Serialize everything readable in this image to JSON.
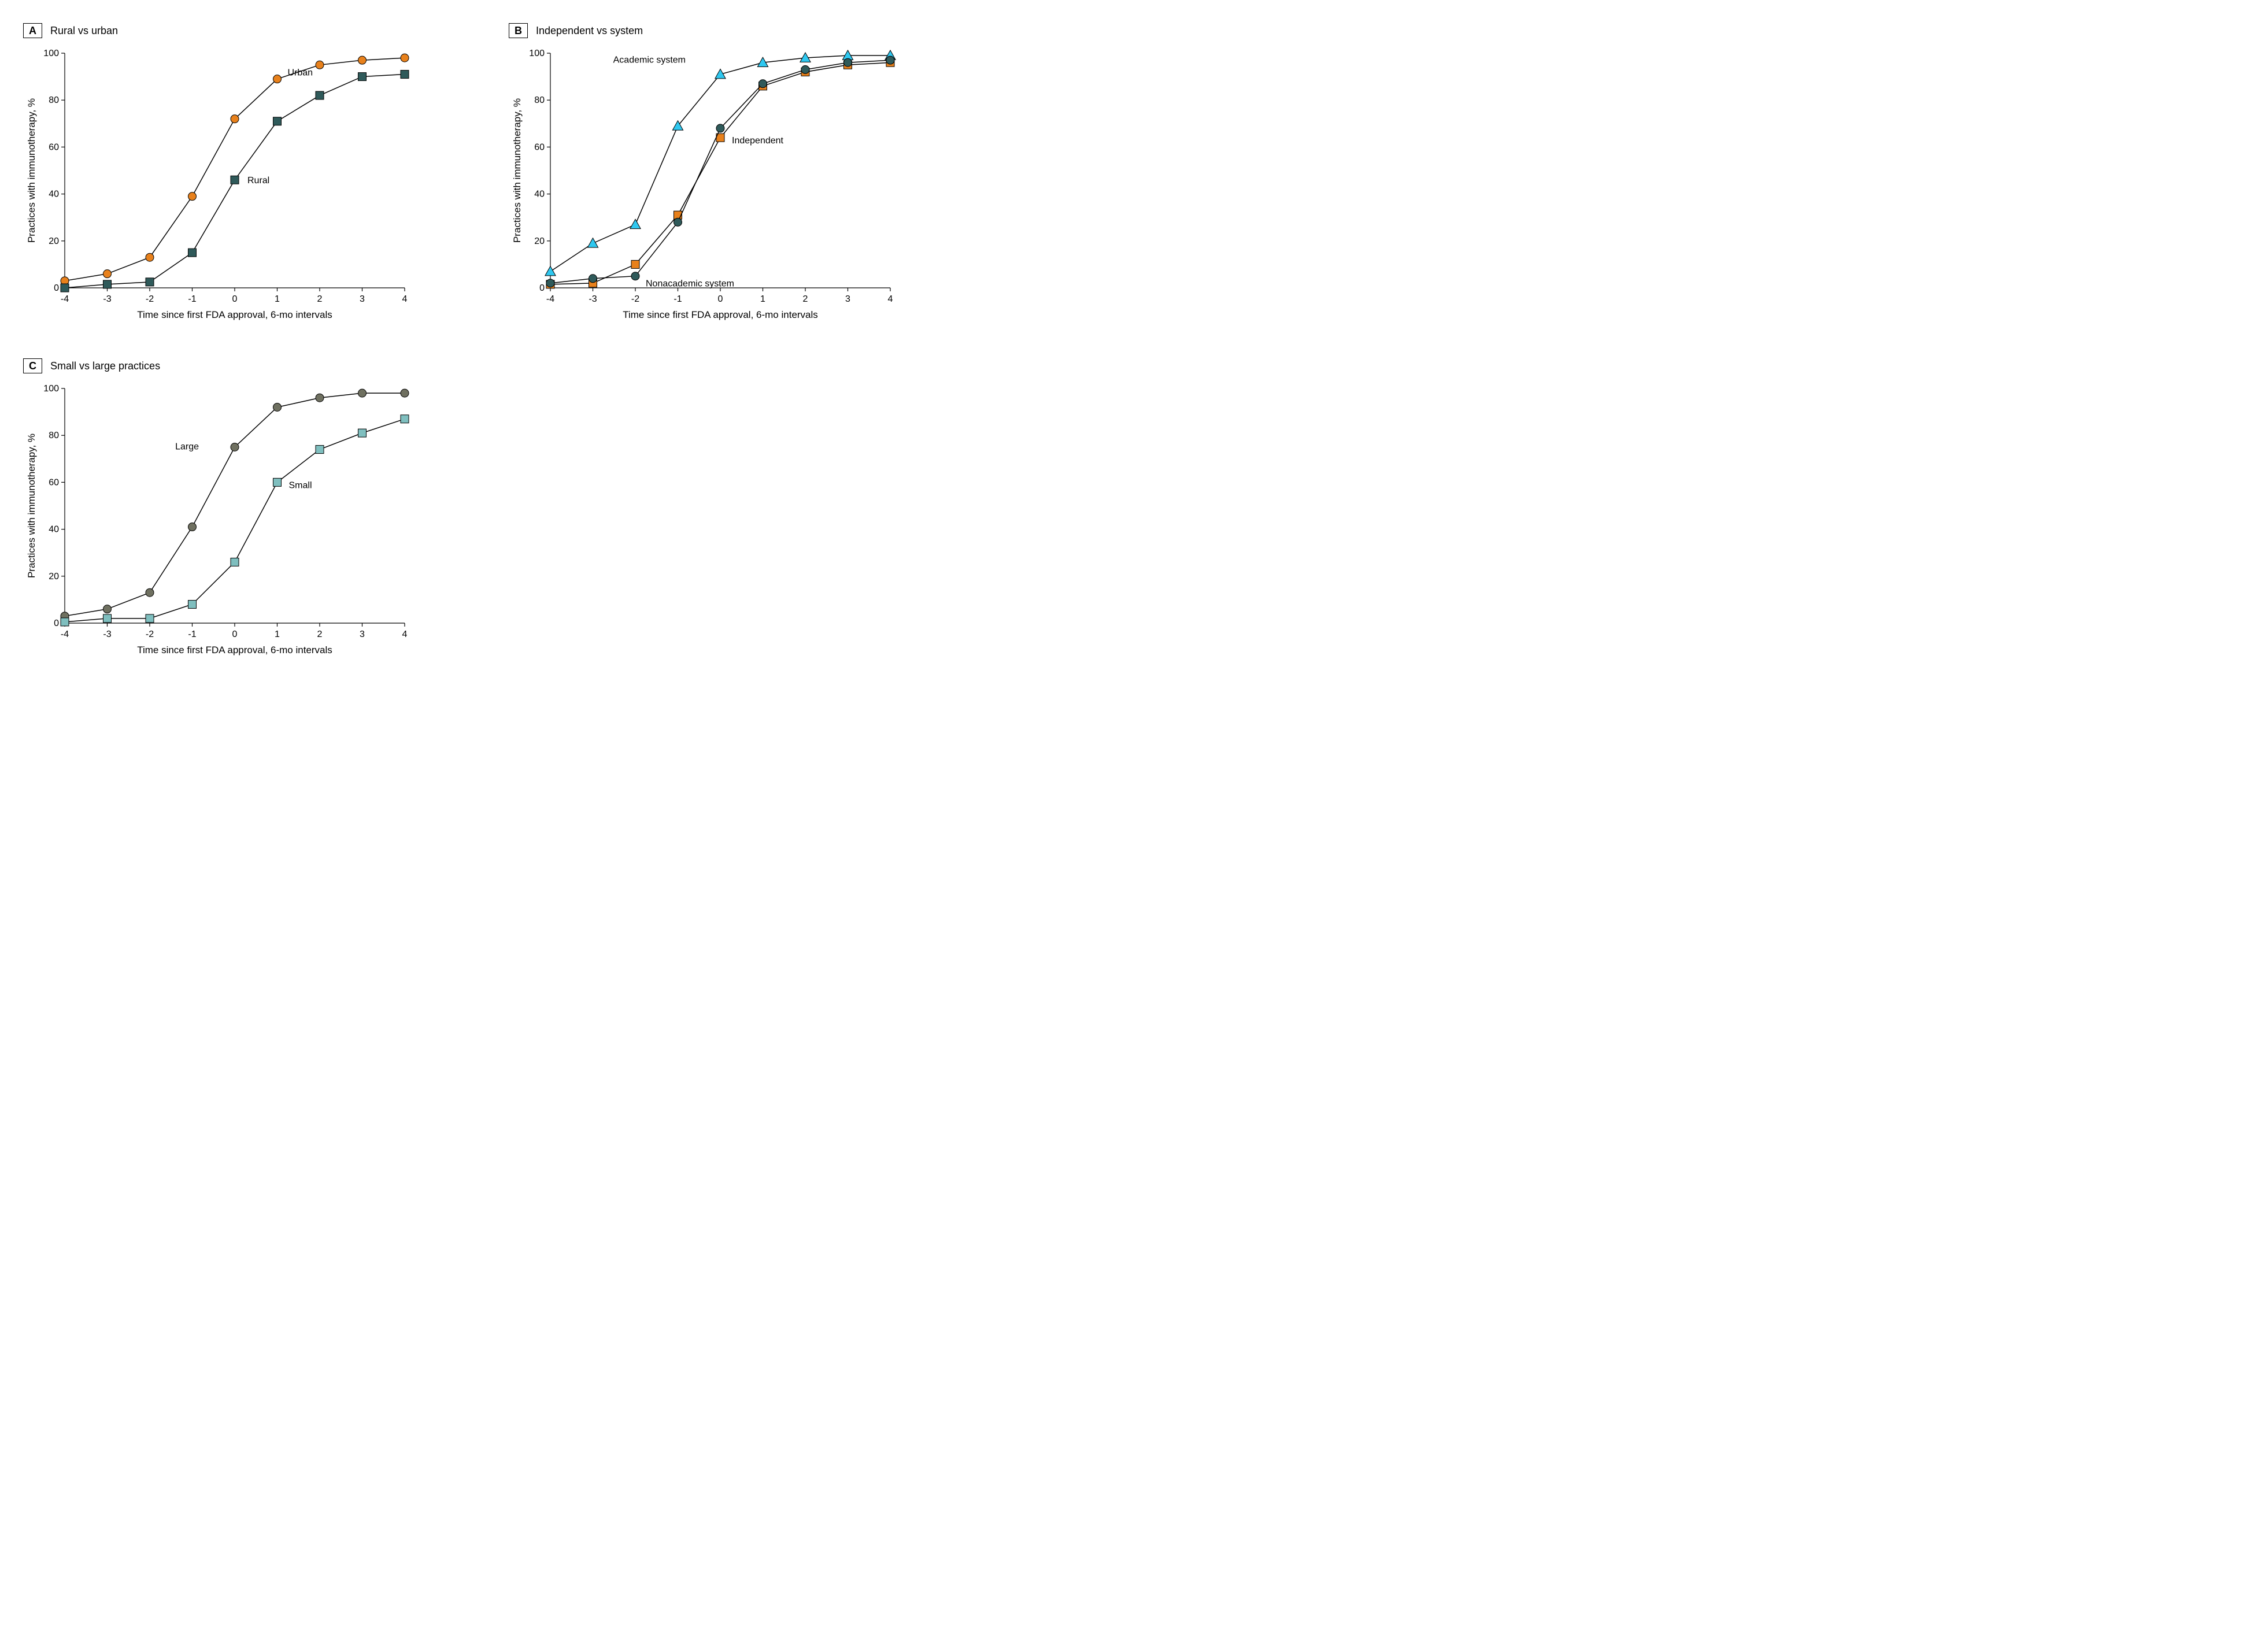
{
  "figure": {
    "background_color": "#ffffff",
    "axis_color": "#000000",
    "tick_color": "#000000",
    "line_color": "#000000",
    "text_color": "#000000",
    "tick_fontsize": 16,
    "label_fontsize": 17,
    "title_fontsize": 18,
    "line_width": 1.5,
    "marker_size": 7
  },
  "panels": {
    "A": {
      "letter": "A",
      "title": "Rural vs urban",
      "xlabel": "Time since first FDA approval, 6-mo intervals",
      "ylabel": "Practices with immunotherapy, %",
      "x": [
        -4,
        -3,
        -2,
        -1,
        0,
        1,
        2,
        3,
        4
      ],
      "xlim": [
        -4,
        4
      ],
      "ylim": [
        0,
        100
      ],
      "ytick_step": 20,
      "series": [
        {
          "name": "Urban",
          "label": "Urban",
          "marker": "circle",
          "color": "#e8811c",
          "label_at": 1,
          "label_dx": 18,
          "label_dy": -6,
          "y": [
            3,
            6,
            13,
            39,
            72,
            89,
            95,
            97,
            98
          ]
        },
        {
          "name": "Rural",
          "label": "Rural",
          "marker": "square",
          "color": "#2f5a5a",
          "label_at": 0,
          "label_dx": 22,
          "label_dy": 6,
          "y": [
            0,
            1.5,
            2.5,
            15,
            46,
            71,
            82,
            90,
            91
          ]
        }
      ]
    },
    "B": {
      "letter": "B",
      "title": "Independent vs system",
      "xlabel": "Time since first FDA approval, 6-mo intervals",
      "ylabel": "Practices with immunotherapy, %",
      "x": [
        -4,
        -3,
        -2,
        -1,
        0,
        1,
        2,
        3,
        4
      ],
      "xlim": [
        -4,
        4
      ],
      "ylim": [
        0,
        100
      ],
      "ytick_step": 20,
      "series": [
        {
          "name": "Academic system",
          "label": "Academic system",
          "marker": "triangle",
          "color": "#2fc8f0",
          "label_at": 0,
          "label_dx": -60,
          "label_dy": -20,
          "y": [
            7,
            19,
            27,
            69,
            91,
            96,
            98,
            99,
            99
          ]
        },
        {
          "name": "Independent",
          "label": "Independent",
          "marker": "square",
          "color": "#e8811c",
          "label_at": 0,
          "label_dx": 20,
          "label_dy": 10,
          "y": [
            1.5,
            2,
            10,
            31,
            64,
            86,
            92,
            95,
            96
          ]
        },
        {
          "name": "Nonacademic system",
          "label": "Nonacademic system",
          "marker": "circle",
          "color": "#2f5a5a",
          "label_at": -2,
          "label_dx": 18,
          "label_dy": 18,
          "y": [
            2,
            4,
            5,
            28,
            68,
            87,
            93,
            96,
            97
          ]
        }
      ]
    },
    "C": {
      "letter": "C",
      "title": "Small vs large practices",
      "xlabel": "Time since first FDA approval, 6-mo intervals",
      "ylabel": "Practices with immunotherapy, %",
      "x": [
        -4,
        -3,
        -2,
        -1,
        0,
        1,
        2,
        3,
        4
      ],
      "xlim": [
        -4,
        4
      ],
      "ylim": [
        0,
        100
      ],
      "ytick_step": 20,
      "series": [
        {
          "name": "Large",
          "label": "Large",
          "marker": "circle",
          "color": "#6f7060",
          "label_at": 0,
          "label_dx": -62,
          "label_dy": 4,
          "y": [
            3,
            6,
            13,
            41,
            75,
            92,
            96,
            98,
            98
          ]
        },
        {
          "name": "Small",
          "label": "Small",
          "marker": "square",
          "color": "#7fbfbf",
          "label_at": 1,
          "label_dx": 20,
          "label_dy": 10,
          "y": [
            0.5,
            2,
            2,
            8,
            26,
            60,
            74,
            81,
            87
          ]
        }
      ]
    }
  }
}
